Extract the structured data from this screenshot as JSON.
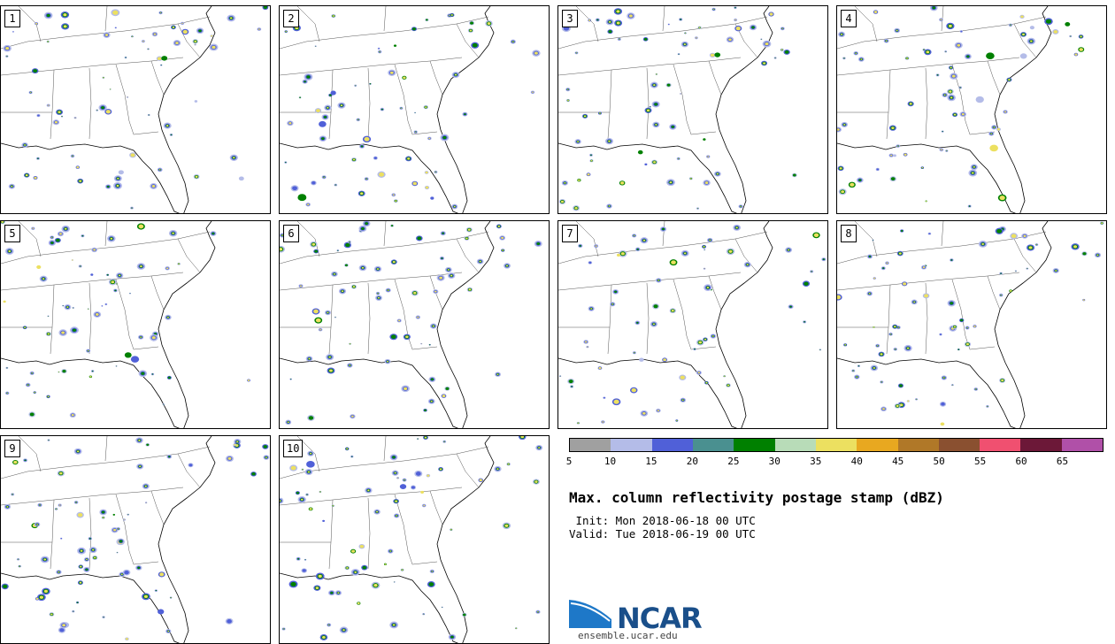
{
  "panels": [
    {
      "label": "1"
    },
    {
      "label": "2"
    },
    {
      "label": "3"
    },
    {
      "label": "4"
    },
    {
      "label": "5"
    },
    {
      "label": "6"
    },
    {
      "label": "7"
    },
    {
      "label": "8"
    },
    {
      "label": "9"
    },
    {
      "label": "10"
    }
  ],
  "colorbar": {
    "colors": [
      "#a0a0a0",
      "#b4bce8",
      "#5060d8",
      "#4a9090",
      "#008000",
      "#b8dcb8",
      "#ece060",
      "#e8a820",
      "#b07828",
      "#8a5030",
      "#f05070",
      "#6c1838",
      "#b050a8"
    ],
    "ticks": [
      "5",
      "10",
      "15",
      "20",
      "25",
      "30",
      "35",
      "40",
      "45",
      "50",
      "55",
      "60",
      "65"
    ]
  },
  "title": "Max. column reflectivity postage stamp (dBZ)",
  "init": " Init: Mon 2018-06-18 00 UTC",
  "valid": "Valid: Tue 2018-06-19 00 UTC",
  "logo": {
    "text": "NCAR",
    "site": "ensemble.ucar.edu",
    "color": "#1a4f8a",
    "swoosh_color": "#1e78c8"
  }
}
